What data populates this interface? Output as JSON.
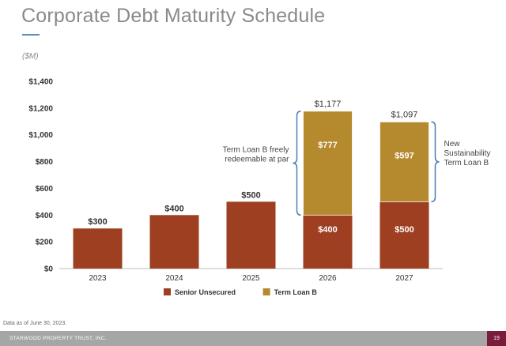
{
  "page": {
    "title": "Corporate Debt Maturity Schedule",
    "units": "($M)",
    "footnote": "Data as of June 30, 2023.",
    "company": "STARWOOD PROPERTY TRUST, INC.",
    "page_number": "19"
  },
  "colors": {
    "senior_unsecured": "#9e3f22",
    "term_loan_b": "#b5892e",
    "axis_text": "#333333",
    "bracket": "#4a7fb5",
    "footer_page_bg": "#7b1c3a"
  },
  "chart_data": {
    "type": "bar",
    "stacked": true,
    "categories": [
      "2023",
      "2024",
      "2025",
      "2026",
      "2027"
    ],
    "series": [
      {
        "name": "Senior Unsecured",
        "values": [
          300,
          400,
          500,
          400,
          500
        ],
        "labels": [
          "$300",
          "$400",
          "$500",
          "$400",
          "$500"
        ]
      },
      {
        "name": "Term Loan B",
        "values": [
          0,
          0,
          0,
          777,
          597
        ],
        "labels": [
          "",
          "",
          "",
          "$777",
          "$597"
        ]
      }
    ],
    "totals": [
      null,
      null,
      null,
      "$1,177",
      "$1,097"
    ],
    "ylim": [
      0,
      1400
    ],
    "yticks": [
      0,
      200,
      400,
      600,
      800,
      1000,
      1200,
      1400
    ],
    "ytick_labels": [
      "$0",
      "$200",
      "$400",
      "$600",
      "$800",
      "$1,000",
      "$1,200",
      "$1,400"
    ],
    "legend_position": "bottom",
    "annotations": [
      {
        "text_lines": [
          "Term Loan B freely",
          "redeemable at par"
        ],
        "category": "2026",
        "side": "left"
      },
      {
        "text_lines": [
          "New",
          "Sustainability",
          "Term Loan B"
        ],
        "category": "2027",
        "side": "right"
      }
    ],
    "grid": false
  }
}
